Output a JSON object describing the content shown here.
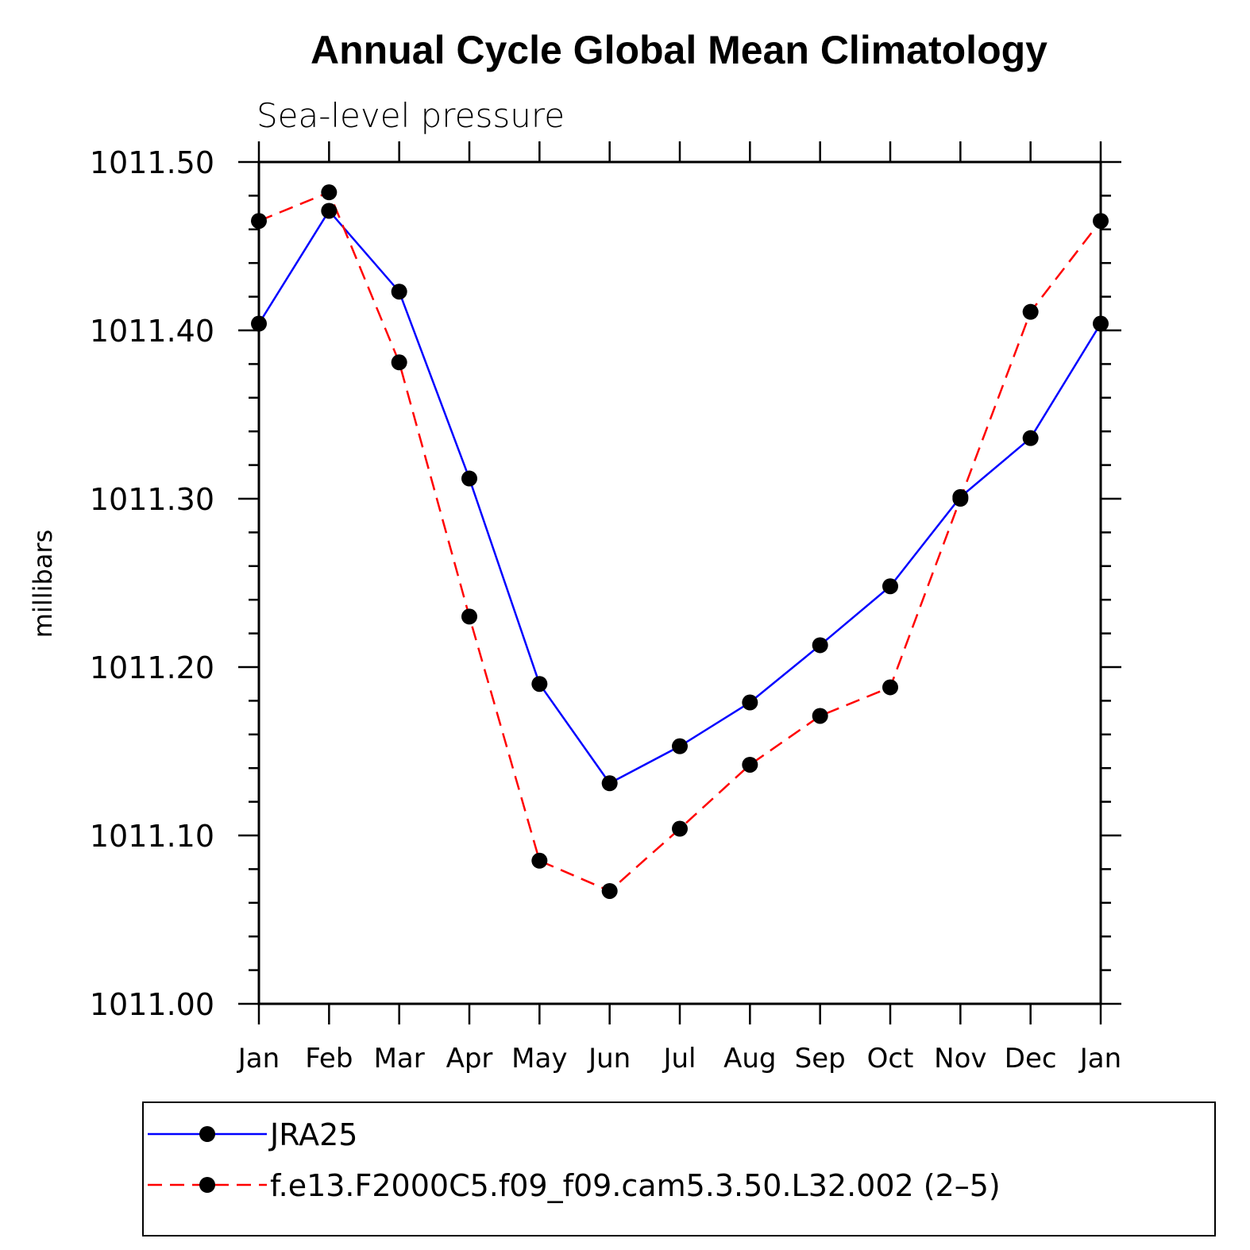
{
  "chart_data": {
    "type": "line",
    "title": "Annual Cycle Global Mean Climatology",
    "subtitle": "Sea-level pressure",
    "ylabel": "millibars",
    "categories": [
      "Jan",
      "Feb",
      "Mar",
      "Apr",
      "May",
      "Jun",
      "Jul",
      "Aug",
      "Sep",
      "Oct",
      "Nov",
      "Dec",
      "Jan"
    ],
    "ylim": [
      1011.0,
      1011.5
    ],
    "yticks": [
      "1011.00",
      "1011.10",
      "1011.20",
      "1011.30",
      "1011.40",
      "1011.50"
    ],
    "grid": false,
    "legend_position": "bottom",
    "series": [
      {
        "name": "JRA25",
        "color": "#0000ff",
        "dash": "solid",
        "marker": "filled-circle",
        "values": [
          1011.404,
          1011.471,
          1011.423,
          1011.312,
          1011.19,
          1011.131,
          1011.153,
          1011.179,
          1011.213,
          1011.248,
          1011.301,
          1011.336,
          1011.404
        ]
      },
      {
        "name": "f.e13.F2000C5.f09_f09.cam5.3.50.L32.002 (2–5)",
        "color": "#ff0000",
        "dash": "dashed",
        "marker": "filled-circle",
        "values": [
          1011.465,
          1011.482,
          1011.381,
          1011.23,
          1011.085,
          1011.067,
          1011.104,
          1011.142,
          1011.171,
          1011.188,
          1011.3,
          1011.411,
          1011.465
        ]
      }
    ]
  }
}
